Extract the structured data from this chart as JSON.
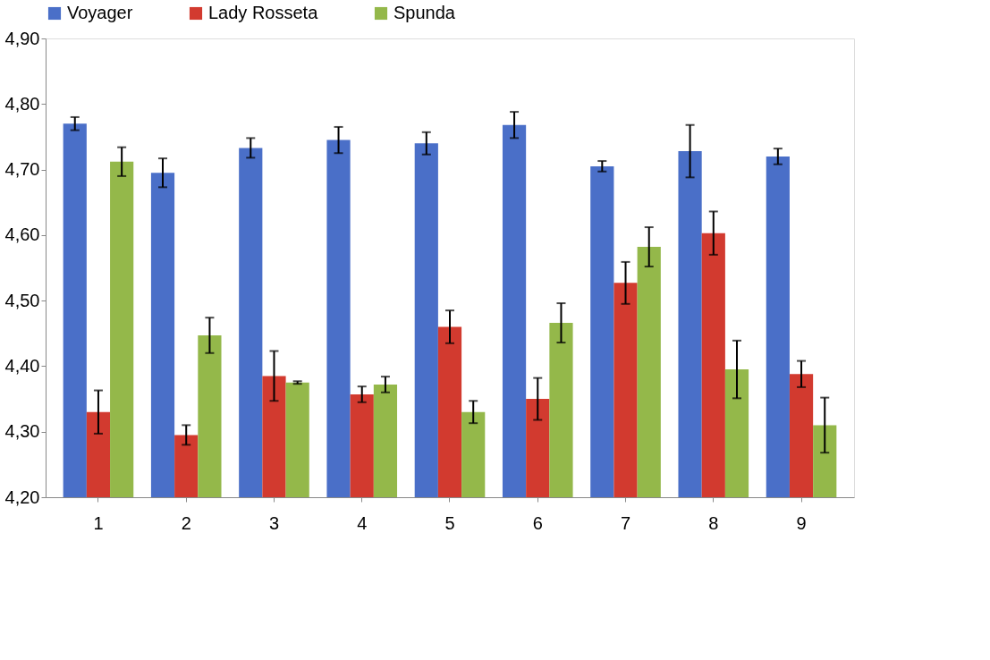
{
  "chart_data": {
    "type": "bar",
    "categories": [
      "1",
      "2",
      "3",
      "4",
      "5",
      "6",
      "7",
      "8",
      "9"
    ],
    "series": [
      {
        "name": "Voyager",
        "color": "#4a6fc8",
        "values": [
          4.77,
          4.695,
          4.733,
          4.745,
          4.74,
          4.768,
          4.705,
          4.728,
          4.72
        ],
        "errors": [
          0.01,
          0.022,
          0.015,
          0.02,
          0.017,
          0.02,
          0.008,
          0.04,
          0.012
        ]
      },
      {
        "name": "Lady Rosseta",
        "color": "#d23a2f",
        "values": [
          4.33,
          4.295,
          4.385,
          4.357,
          4.46,
          4.35,
          4.527,
          4.603,
          4.388
        ],
        "errors": [
          0.033,
          0.015,
          0.038,
          0.012,
          0.025,
          0.032,
          0.032,
          0.033,
          0.02
        ]
      },
      {
        "name": "Spunda",
        "color": "#94b84a",
        "values": [
          4.712,
          4.447,
          4.375,
          4.372,
          4.33,
          4.466,
          4.582,
          4.395,
          4.31
        ],
        "errors": [
          0.022,
          0.027,
          0.002,
          0.012,
          0.017,
          0.03,
          0.03,
          0.044,
          0.042
        ]
      }
    ],
    "ylim": [
      4.2,
      4.9
    ],
    "yticks": [
      {
        "value": 4.2,
        "label": "4,20"
      },
      {
        "value": 4.3,
        "label": "4,30"
      },
      {
        "value": 4.4,
        "label": "4,40"
      },
      {
        "value": 4.5,
        "label": "4,50"
      },
      {
        "value": 4.6,
        "label": "4,60"
      },
      {
        "value": 4.7,
        "label": "4,70"
      },
      {
        "value": 4.8,
        "label": "4,80"
      },
      {
        "value": 4.9,
        "label": "4,90"
      }
    ],
    "grid": false,
    "legend": "top"
  }
}
